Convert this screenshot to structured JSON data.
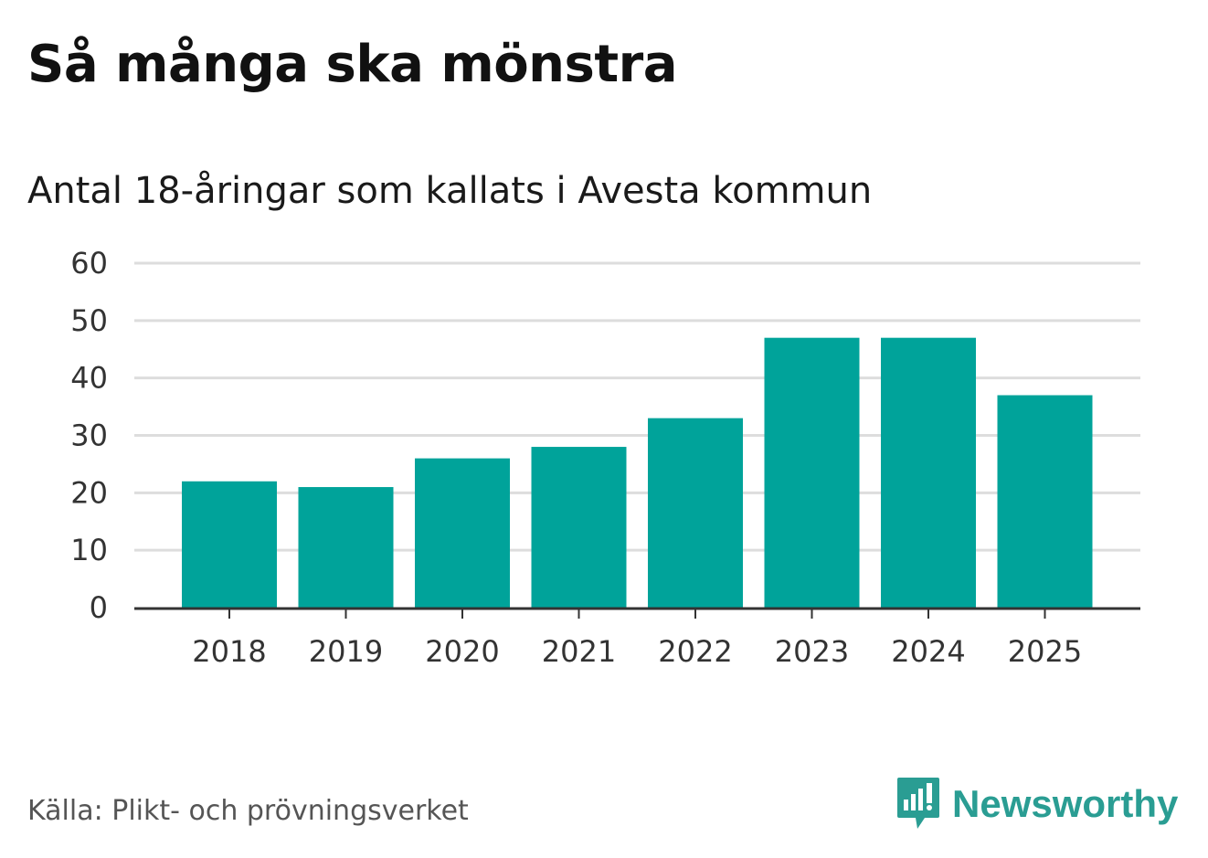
{
  "title": "Så många ska mönstra",
  "subtitle": "Antal 18-åringar som kallats i Avesta kommun",
  "source": "Källa: Plikt- och prövningsverket",
  "brand": {
    "name": "Newsworthy",
    "icon": "newsworthy-logo-icon",
    "color": "#2a9d93"
  },
  "chart_data": {
    "type": "bar",
    "title": "Så många ska mönstra",
    "subtitle": "Antal 18-åringar som kallats i Avesta kommun",
    "xlabel": "",
    "ylabel": "",
    "categories": [
      "2018",
      "2019",
      "2020",
      "2021",
      "2022",
      "2023",
      "2024",
      "2025"
    ],
    "values": [
      22,
      21,
      26,
      28,
      33,
      47,
      47,
      37
    ],
    "ylim": [
      0,
      60
    ],
    "yticks": [
      0,
      10,
      20,
      30,
      40,
      50,
      60
    ],
    "grid": true,
    "bar_color": "#00a39a",
    "grid_color": "#dddddd",
    "axis_color": "#333333"
  }
}
